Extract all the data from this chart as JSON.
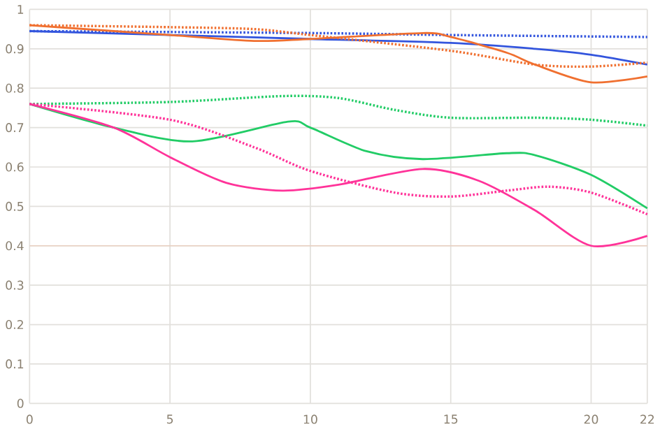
{
  "chart_data": {
    "type": "line",
    "xlim": [
      0,
      22
    ],
    "ylim": [
      0,
      1
    ],
    "xticks": [
      0,
      5,
      10,
      15,
      20,
      22
    ],
    "yticks": [
      0,
      0.1,
      0.2,
      0.3,
      0.4,
      0.5,
      0.6,
      0.7,
      0.8,
      0.9,
      1
    ],
    "grid": true,
    "marker": "none",
    "ref_lines": [
      {
        "axis": "y",
        "value": 0.4,
        "color": "#e8cfc0"
      }
    ],
    "series": [
      {
        "color": "#3355dd",
        "line_style": "solid",
        "x": [
          0,
          5,
          10,
          15,
          18,
          20,
          22
        ],
        "values": [
          0.945,
          0.935,
          0.925,
          0.915,
          0.9,
          0.885,
          0.86
        ]
      },
      {
        "color": "#3355dd",
        "line_style": "dotted",
        "x": [
          0,
          10,
          15,
          22
        ],
        "values": [
          0.945,
          0.94,
          0.935,
          0.93
        ]
      },
      {
        "color": "#f07030",
        "line_style": "solid",
        "x": [
          0,
          5,
          8,
          10,
          14,
          15,
          17,
          18,
          20,
          22
        ],
        "values": [
          0.96,
          0.935,
          0.92,
          0.925,
          0.94,
          0.93,
          0.89,
          0.86,
          0.815,
          0.83
        ]
      },
      {
        "color": "#f07030",
        "line_style": "dotted",
        "x": [
          0,
          5,
          8,
          10,
          15,
          18,
          20,
          22
        ],
        "values": [
          0.96,
          0.955,
          0.95,
          0.935,
          0.895,
          0.86,
          0.855,
          0.865
        ]
      },
      {
        "color": "#22cc66",
        "line_style": "solid",
        "x": [
          0,
          3,
          5.8,
          9.2,
          10,
          12,
          14,
          17,
          18,
          20,
          22
        ],
        "values": [
          0.76,
          0.7,
          0.665,
          0.715,
          0.7,
          0.64,
          0.62,
          0.635,
          0.63,
          0.58,
          0.495
        ]
      },
      {
        "color": "#22cc66",
        "line_style": "dotted",
        "x": [
          0,
          5,
          9,
          11,
          13,
          15,
          18,
          20,
          22
        ],
        "values": [
          0.76,
          0.765,
          0.78,
          0.775,
          0.745,
          0.725,
          0.725,
          0.72,
          0.705
        ]
      },
      {
        "color": "#ff3399",
        "line_style": "solid",
        "x": [
          0,
          3,
          5,
          7,
          9,
          11,
          14,
          16,
          18,
          20,
          22
        ],
        "values": [
          0.76,
          0.7,
          0.625,
          0.56,
          0.54,
          0.555,
          0.595,
          0.565,
          0.49,
          0.4,
          0.425
        ]
      },
      {
        "color": "#ff3399",
        "line_style": "dotted",
        "x": [
          0,
          5,
          8,
          10,
          13,
          15,
          17,
          18.5,
          20,
          22
        ],
        "values": [
          0.76,
          0.72,
          0.65,
          0.59,
          0.535,
          0.525,
          0.54,
          0.55,
          0.535,
          0.48
        ]
      }
    ]
  }
}
